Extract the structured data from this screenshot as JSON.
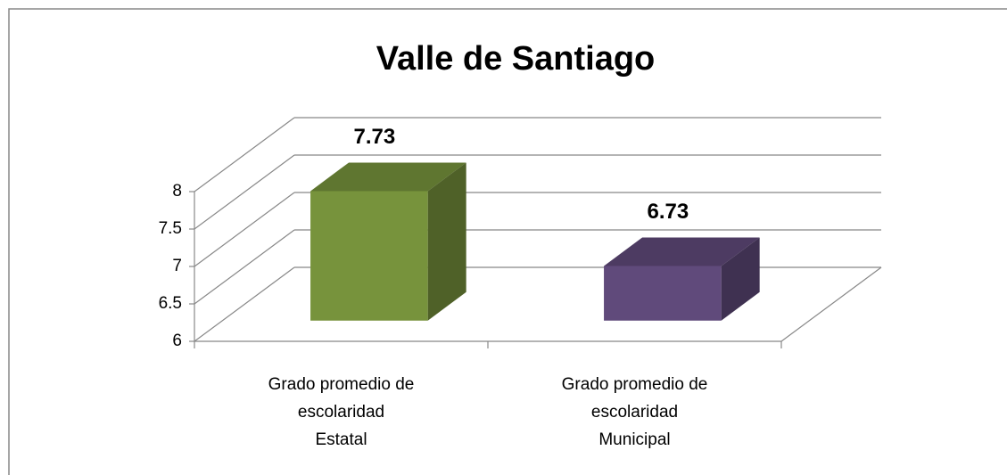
{
  "chart_data": {
    "type": "bar3d",
    "title": "Valle de Santiago",
    "categories": [
      "Grado promedio de\nescolaridad\nEstatal",
      "Grado promedio de\nescolaridad\nMunicipal"
    ],
    "values": [
      7.73,
      6.73
    ],
    "colors": [
      "#77933c",
      "#604a7b"
    ],
    "ylim": [
      6,
      8
    ],
    "yticks": [
      6,
      6.5,
      7,
      7.5,
      8
    ],
    "grid": true
  }
}
